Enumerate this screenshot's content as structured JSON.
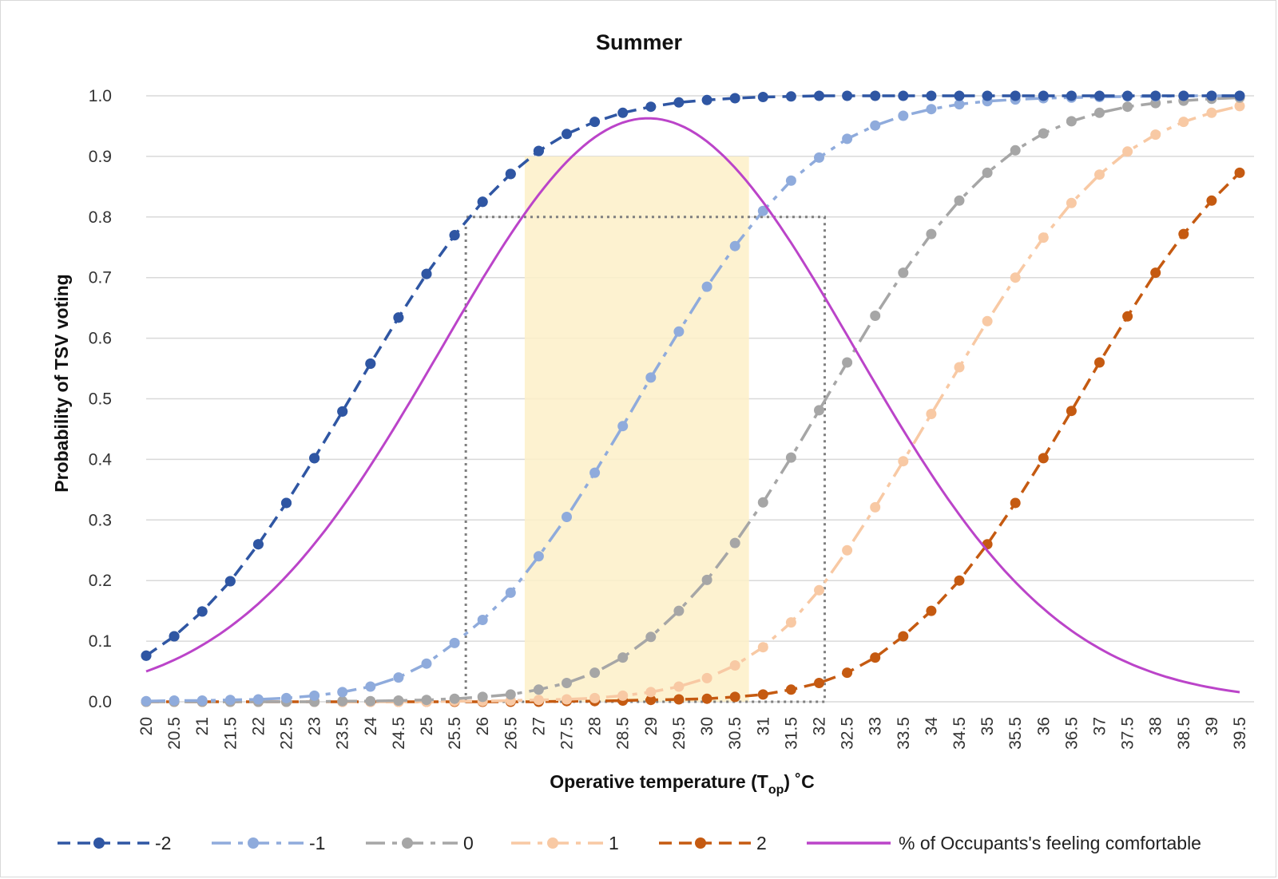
{
  "chart_data": {
    "type": "line",
    "title": "Summer",
    "xlabel_main": "Operative temperature (T",
    "xlabel_sub": "op",
    "xlabel_end": ") ˚C",
    "ylabel": "Probability of TSV voting",
    "ylim": [
      0,
      1
    ],
    "y_ticks": [
      "0.0",
      "0.1",
      "0.2",
      "0.3",
      "0.4",
      "0.5",
      "0.6",
      "0.7",
      "0.8",
      "0.9",
      "1.0"
    ],
    "x": [
      20,
      20.5,
      21,
      21.5,
      22,
      22.5,
      23,
      23.5,
      24,
      24.5,
      25,
      25.5,
      26,
      26.5,
      27,
      27.5,
      28,
      28.5,
      29,
      29.5,
      30,
      30.5,
      31,
      31.5,
      32,
      32.5,
      33,
      33.5,
      34,
      34.5,
      35,
      35.5,
      36,
      36.5,
      37,
      37.5,
      38,
      38.5,
      39,
      39.5
    ],
    "x_tick_labels": [
      "20",
      "20.5",
      "21",
      "21.5",
      "22",
      "22.5",
      "23",
      "23.5",
      "24",
      "24.5",
      "25",
      "25.5",
      "26",
      "26.5",
      "27",
      "27.5",
      "28",
      "28.5",
      "29",
      "29.5",
      "30",
      "30.5",
      "31",
      "31.5",
      "32",
      "32.5",
      "33",
      "33.5",
      "34",
      "34.5",
      "35",
      "35.5",
      "36",
      "36.5",
      "37",
      "37.5",
      "38",
      "38.5",
      "39",
      "39.5"
    ],
    "grid": true,
    "legend_position": "bottom",
    "highlight_band": {
      "x_from": 26.75,
      "x_to": 30.75,
      "y_from": 0,
      "y_to": 0.9,
      "color": "#fdf0c8"
    },
    "dotted_box": {
      "x_from": 25.7,
      "x_to": 32.1,
      "y_from": 0,
      "y_to": 0.8,
      "color": "#7f7f7f"
    },
    "series": [
      {
        "name": "-2",
        "color": "#2f56a3",
        "dash": "dash",
        "values": [
          0.076,
          0.108,
          0.149,
          0.199,
          0.26,
          0.328,
          0.402,
          0.479,
          0.558,
          0.634,
          0.706,
          0.77,
          0.825,
          0.871,
          0.909,
          0.937,
          0.957,
          0.972,
          0.982,
          0.989,
          0.993,
          0.996,
          0.998,
          0.999,
          1.0,
          1.0,
          1.0,
          1.0,
          1.0,
          1.0,
          1.0,
          1.0,
          1.0,
          1.0,
          1.0,
          1.0,
          1.0,
          1.0,
          1.0,
          1.0
        ]
      },
      {
        "name": "-1",
        "color": "#8fabdc",
        "dash": "longdash",
        "values": [
          0.001,
          0.002,
          0.002,
          0.003,
          0.004,
          0.006,
          0.01,
          0.016,
          0.025,
          0.04,
          0.063,
          0.097,
          0.135,
          0.18,
          0.24,
          0.305,
          0.378,
          0.455,
          0.535,
          0.611,
          0.685,
          0.752,
          0.81,
          0.86,
          0.898,
          0.929,
          0.951,
          0.967,
          0.978,
          0.986,
          0.991,
          0.994,
          0.996,
          0.997,
          0.998,
          0.999,
          0.999,
          1.0,
          1.0,
          1.0
        ]
      },
      {
        "name": "0",
        "color": "#a6a6a6",
        "dash": "longdash",
        "values": [
          0,
          0,
          0,
          0,
          0,
          0,
          0,
          0.001,
          0.001,
          0.002,
          0.003,
          0.005,
          0.008,
          0.012,
          0.02,
          0.031,
          0.048,
          0.073,
          0.107,
          0.15,
          0.201,
          0.262,
          0.329,
          0.403,
          0.481,
          0.56,
          0.637,
          0.708,
          0.772,
          0.827,
          0.873,
          0.91,
          0.938,
          0.958,
          0.972,
          0.982,
          0.988,
          0.992,
          0.995,
          0.997
        ]
      },
      {
        "name": "1",
        "color": "#f8c9a4",
        "dash": "longdash",
        "values": [
          0,
          0,
          0,
          0,
          0,
          0,
          0,
          0,
          0,
          0,
          0,
          0.001,
          0.001,
          0.002,
          0.003,
          0.004,
          0.006,
          0.01,
          0.016,
          0.025,
          0.039,
          0.06,
          0.09,
          0.131,
          0.184,
          0.25,
          0.321,
          0.397,
          0.475,
          0.552,
          0.628,
          0.7,
          0.766,
          0.823,
          0.87,
          0.908,
          0.936,
          0.957,
          0.972,
          0.983
        ]
      },
      {
        "name": "2",
        "color": "#c55a11",
        "dash": "dash",
        "values": [
          0,
          0,
          0,
          0,
          0,
          0,
          0,
          0,
          0,
          0,
          0,
          0,
          0,
          0,
          0,
          0.001,
          0.001,
          0.002,
          0.003,
          0.004,
          0.005,
          0.008,
          0.012,
          0.02,
          0.031,
          0.048,
          0.073,
          0.108,
          0.15,
          0.2,
          0.26,
          0.328,
          0.402,
          0.48,
          0.56,
          0.636,
          0.708,
          0.772,
          0.827,
          0.873
        ]
      }
    ],
    "comfort_curve": {
      "name": "% of Occupants's feeling comfortable",
      "color": "#bb44c9",
      "peak_x": 28.95,
      "peak_y": 0.963,
      "sigma": 3.68
    }
  }
}
